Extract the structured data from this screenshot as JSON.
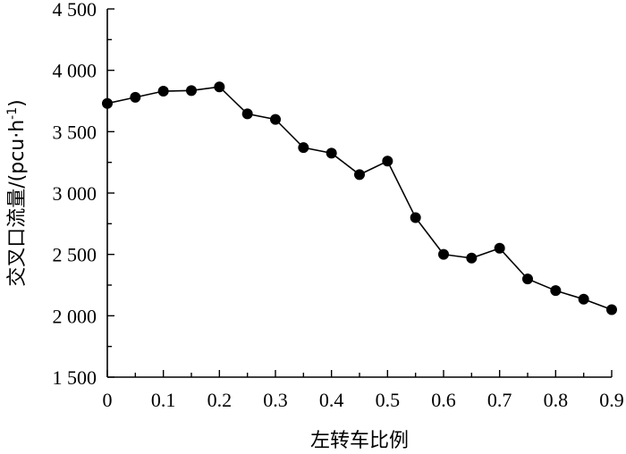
{
  "chart_data": {
    "type": "line",
    "title": "",
    "xlabel": "左转车比例",
    "ylabel": "交叉口流量/(pcu·h",
    "ylabel_sup": "-1",
    "ylabel_tail": ")",
    "xlim": [
      0,
      0.9
    ],
    "ylim": [
      1500,
      4500
    ],
    "xticks": [
      0,
      0.1,
      0.2,
      0.3,
      0.4,
      0.5,
      0.6,
      0.7,
      0.8,
      0.9
    ],
    "xtick_labels": [
      "0",
      "0.1",
      "0.2",
      "0.3",
      "0.4",
      "0.5",
      "0.6",
      "0.7",
      "0.8",
      "0.9"
    ],
    "yticks": [
      1500,
      2000,
      2500,
      3000,
      3500,
      4000,
      4500
    ],
    "ytick_labels": [
      "1 500",
      "2 000",
      "2 500",
      "3 000",
      "3 500",
      "4 000",
      "4 500"
    ],
    "grid": false,
    "series": [
      {
        "x": [
          0,
          0.05,
          0.1,
          0.15,
          0.2,
          0.25,
          0.3,
          0.35,
          0.4,
          0.45,
          0.5,
          0.55,
          0.6,
          0.65,
          0.7,
          0.75,
          0.8,
          0.85,
          0.9
        ],
        "y": [
          3730,
          3780,
          3830,
          3835,
          3865,
          3645,
          3600,
          3370,
          3325,
          3150,
          3260,
          2800,
          2500,
          2470,
          2550,
          2300,
          2205,
          2135,
          2050
        ]
      }
    ]
  }
}
